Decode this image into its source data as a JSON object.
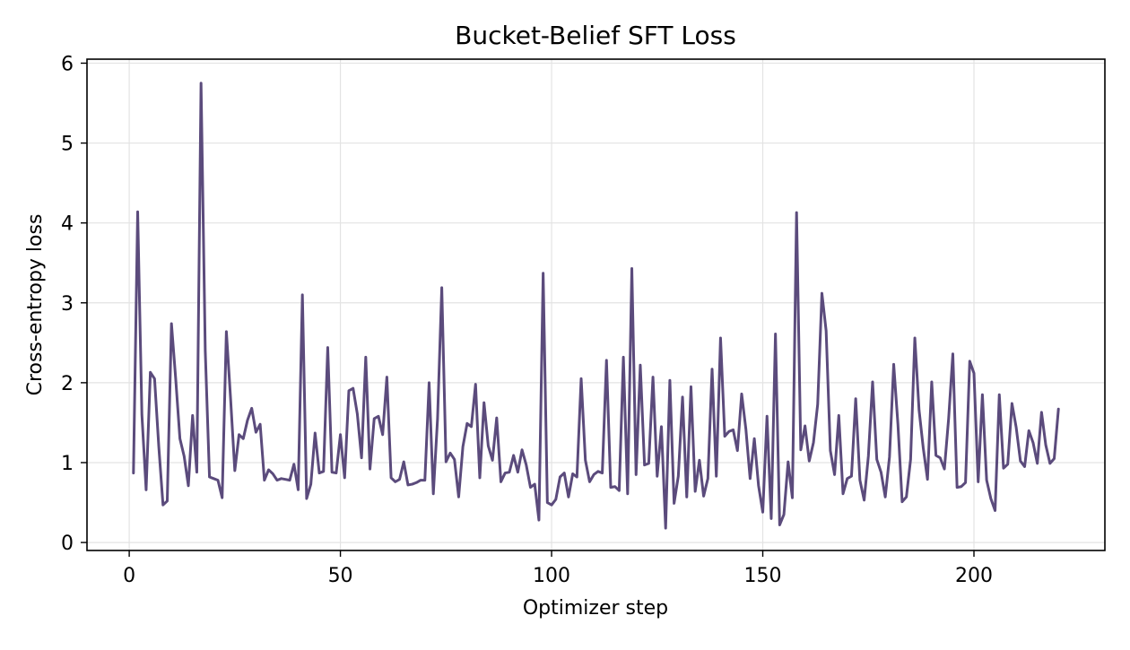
{
  "chart_data": {
    "type": "line",
    "title": "Bucket-Belief SFT Loss",
    "xlabel": "Optimizer step",
    "ylabel": "Cross-entropy loss",
    "xlim": [
      -10,
      231
    ],
    "ylim": [
      -0.1,
      6.05
    ],
    "xticks": [
      0,
      50,
      100,
      150,
      200
    ],
    "yticks": [
      0,
      1,
      2,
      3,
      4,
      5,
      6
    ],
    "grid": true,
    "line_color": "#5b4b7c",
    "series": [
      {
        "x": [
          1,
          2,
          3,
          4,
          5,
          6,
          7,
          8,
          9,
          10,
          11,
          12,
          13,
          14,
          15,
          16,
          17,
          18,
          19,
          20,
          21,
          22,
          23,
          24,
          25,
          26,
          27,
          28,
          29,
          30,
          31,
          32,
          33,
          34,
          35,
          36,
          37,
          38,
          39,
          40,
          41,
          42,
          43,
          44,
          45,
          46,
          47,
          48,
          49,
          50,
          51,
          52,
          53,
          54,
          55,
          56,
          57,
          58,
          59,
          60,
          61,
          62,
          63,
          64,
          65,
          66,
          67,
          68,
          69,
          70,
          71,
          72,
          73,
          74,
          75,
          76,
          77,
          78,
          79,
          80,
          81,
          82,
          83,
          84,
          85,
          86,
          87,
          88,
          89,
          90,
          91,
          92,
          93,
          94,
          95,
          96,
          97,
          98,
          99,
          100,
          101,
          102,
          103,
          104,
          105,
          106,
          107,
          108,
          109,
          110,
          111,
          112,
          113,
          114,
          115,
          116,
          117,
          118,
          119,
          120,
          121,
          122,
          123,
          124,
          125,
          126,
          127,
          128,
          129,
          130,
          131,
          132,
          133,
          134,
          135,
          136,
          137,
          138,
          139,
          140,
          141,
          142,
          143,
          144,
          145,
          146,
          147,
          148,
          149,
          150,
          151,
          152,
          153,
          154,
          155,
          156,
          157,
          158,
          159,
          160,
          161,
          162,
          163,
          164,
          165,
          166,
          167,
          168,
          169,
          170,
          171,
          172,
          173,
          174,
          175,
          176,
          177,
          178,
          179,
          180,
          181,
          182,
          183,
          184,
          185,
          186,
          187,
          188,
          189,
          190,
          191,
          192,
          193,
          194,
          195,
          196,
          197,
          198,
          199,
          200,
          201,
          202,
          203,
          204,
          205,
          206,
          207,
          208,
          209,
          210,
          211,
          212,
          213,
          214,
          215,
          216,
          217,
          218,
          219,
          220
        ],
        "y": [
          0.87,
          4.14,
          1.6,
          0.66,
          2.13,
          2.05,
          1.2,
          0.47,
          0.52,
          2.74,
          2.05,
          1.3,
          1.08,
          0.71,
          1.59,
          0.88,
          5.75,
          2.4,
          0.82,
          0.8,
          0.78,
          0.56,
          2.64,
          1.8,
          0.9,
          1.35,
          1.3,
          1.53,
          1.68,
          1.38,
          1.48,
          0.78,
          0.91,
          0.86,
          0.78,
          0.8,
          0.79,
          0.78,
          0.98,
          0.66,
          3.1,
          0.55,
          0.73,
          1.37,
          0.87,
          0.89,
          2.44,
          0.88,
          0.87,
          1.35,
          0.81,
          1.9,
          1.93,
          1.61,
          1.06,
          2.32,
          0.92,
          1.55,
          1.58,
          1.35,
          2.07,
          0.81,
          0.76,
          0.79,
          1.01,
          0.72,
          0.73,
          0.75,
          0.78,
          0.78,
          2.0,
          0.61,
          1.55,
          3.19,
          1.01,
          1.12,
          1.04,
          0.57,
          1.2,
          1.49,
          1.45,
          1.98,
          0.81,
          1.75,
          1.21,
          1.03,
          1.56,
          0.76,
          0.87,
          0.88,
          1.09,
          0.88,
          1.16,
          0.97,
          0.69,
          0.73,
          0.28,
          3.37,
          0.5,
          0.47,
          0.54,
          0.82,
          0.87,
          0.57,
          0.86,
          0.82,
          2.05,
          1.03,
          0.76,
          0.85,
          0.89,
          0.87,
          2.28,
          0.69,
          0.7,
          0.65,
          2.32,
          0.61,
          3.43,
          0.85,
          2.22,
          0.97,
          0.99,
          2.07,
          0.83,
          1.45,
          0.18,
          2.03,
          0.49,
          0.83,
          1.82,
          0.57,
          1.95,
          0.64,
          1.03,
          0.58,
          0.8,
          2.17,
          0.83,
          2.56,
          1.33,
          1.39,
          1.41,
          1.15,
          1.86,
          1.42,
          0.8,
          1.3,
          0.71,
          0.38,
          1.58,
          0.3,
          2.61,
          0.22,
          0.35,
          1.01,
          0.56,
          4.13,
          1.16,
          1.46,
          1.02,
          1.25,
          1.73,
          3.12,
          2.65,
          1.15,
          0.85,
          1.59,
          0.61,
          0.8,
          0.83,
          1.8,
          0.78,
          0.53,
          1.08,
          2.01,
          1.04,
          0.88,
          0.57,
          1.07,
          2.23,
          1.48,
          0.51,
          0.57,
          1.04,
          2.56,
          1.66,
          1.18,
          0.79,
          2.01,
          1.09,
          1.06,
          0.92,
          1.55,
          2.36,
          0.69,
          0.7,
          0.75,
          2.27,
          2.12,
          0.76,
          1.85,
          0.78,
          0.55,
          0.4,
          1.85,
          0.93,
          0.98,
          1.74,
          1.44,
          1.02,
          0.95,
          1.4,
          1.25,
          0.99,
          1.63,
          1.22,
          0.99,
          1.05,
          1.67
        ]
      }
    ]
  }
}
